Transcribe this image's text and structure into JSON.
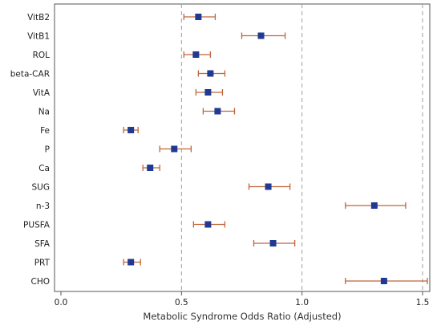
{
  "chart_data": {
    "type": "forest",
    "title": "",
    "xlabel": "Metabolic Syndrome Odds Ratio (Adjusted)",
    "ylabel": "",
    "xlim": [
      0.0,
      1.53
    ],
    "xticks": [
      "0.0",
      "0.5",
      "1.0",
      "1.5"
    ],
    "reference_lines": [
      0.5,
      1.0,
      1.5
    ],
    "grid": false,
    "legend": "none",
    "colors": {
      "point": "#1f3a93",
      "errorbar": "#c0643a",
      "reference": "#a0a0a0",
      "frame": "#555555"
    },
    "rows": [
      {
        "label": "VitB2",
        "or": 0.57,
        "lower": 0.51,
        "upper": 0.64
      },
      {
        "label": "VitB1",
        "or": 0.83,
        "lower": 0.75,
        "upper": 0.93
      },
      {
        "label": "ROL",
        "or": 0.56,
        "lower": 0.51,
        "upper": 0.62
      },
      {
        "label": "beta-CAR",
        "or": 0.62,
        "lower": 0.57,
        "upper": 0.68
      },
      {
        "label": "VitA",
        "or": 0.61,
        "lower": 0.56,
        "upper": 0.67
      },
      {
        "label": "Na",
        "or": 0.65,
        "lower": 0.59,
        "upper": 0.72
      },
      {
        "label": "Fe",
        "or": 0.29,
        "lower": 0.26,
        "upper": 0.32
      },
      {
        "label": "P",
        "or": 0.47,
        "lower": 0.41,
        "upper": 0.54
      },
      {
        "label": "Ca",
        "or": 0.37,
        "lower": 0.34,
        "upper": 0.41
      },
      {
        "label": "SUG",
        "or": 0.86,
        "lower": 0.78,
        "upper": 0.95
      },
      {
        "label": "n-3",
        "or": 1.3,
        "lower": 1.18,
        "upper": 1.43
      },
      {
        "label": "PUSFA",
        "or": 0.61,
        "lower": 0.55,
        "upper": 0.68
      },
      {
        "label": "SFA",
        "or": 0.88,
        "lower": 0.8,
        "upper": 0.97
      },
      {
        "label": "PRT",
        "or": 0.29,
        "lower": 0.26,
        "upper": 0.33
      },
      {
        "label": "CHO",
        "or": 1.34,
        "lower": 1.18,
        "upper": 1.52
      }
    ]
  }
}
